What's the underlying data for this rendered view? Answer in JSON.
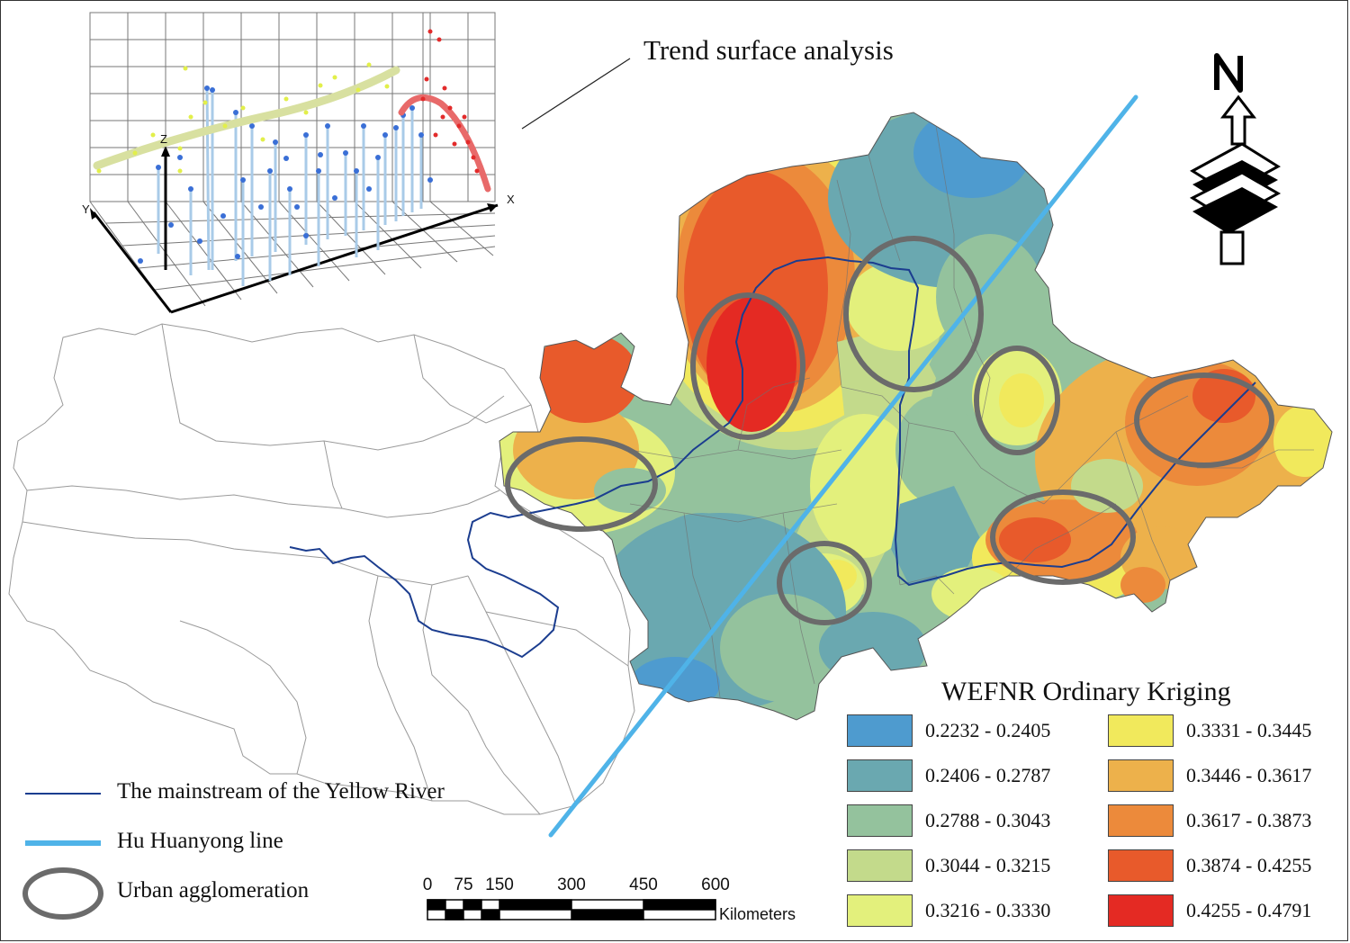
{
  "trend": {
    "label": "Trend surface analysis",
    "axis_x": "X",
    "axis_y": "Y",
    "axis_z": "Z"
  },
  "legend": {
    "title": "WEFNR Ordinary Kriging",
    "classes": [
      {
        "label": "0.2232 - 0.2405",
        "color": "#4e9bcf"
      },
      {
        "label": "0.2406 - 0.2787",
        "color": "#6aa8b0"
      },
      {
        "label": "0.2788 - 0.3043",
        "color": "#94c29d"
      },
      {
        "label": "0.3044 - 0.3215",
        "color": "#c3da8b"
      },
      {
        "label": "0.3216 - 0.3330",
        "color": "#e3f07c"
      },
      {
        "label": "0.3331 - 0.3445",
        "color": "#f1e95c"
      },
      {
        "label": "0.3446 - 0.3617",
        "color": "#edb14b"
      },
      {
        "label": "0.3617 - 0.3873",
        "color": "#ec8a3b"
      },
      {
        "label": "0.3874 - 0.4255",
        "color": "#e85a2b"
      },
      {
        "label": "0.4255 - 0.4791",
        "color": "#e42a23"
      }
    ]
  },
  "line_legend": {
    "river": "The mainstream of the Yellow River",
    "hu_line": "Hu Huanyong line",
    "urban": "Urban agglomeration"
  },
  "scale_bar": {
    "ticks": [
      "0",
      "75",
      "150",
      "300",
      "450",
      "600"
    ],
    "unit": "Kilometers"
  },
  "colors": {
    "river": "#1b3d8f",
    "hu_line": "#4fb3e8",
    "urban_ring": "#6b6b6b"
  }
}
